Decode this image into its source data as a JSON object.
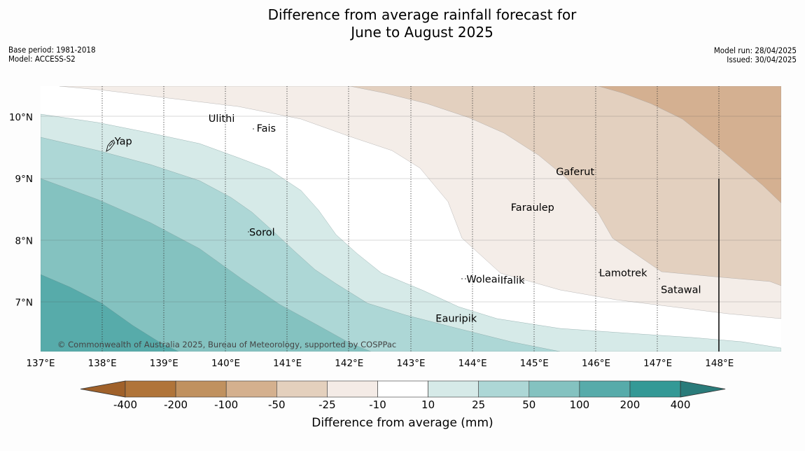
{
  "title": {
    "line1": "Difference from average rainfall forecast for",
    "line2": "June to August 2025"
  },
  "meta_left": {
    "base_period": "Base period: 1981-2018",
    "model": "Model: ACCESS-S2"
  },
  "meta_right": {
    "model_run": "Model run: 28/04/2025",
    "issued": "Issued: 30/04/2025"
  },
  "copyright": "© Commonwealth of Australia 2025, Bureau of Meteorology, supported by COSPPac",
  "axes": {
    "lon_labels": [
      "137°E",
      "138°E",
      "139°E",
      "140°E",
      "141°E",
      "142°E",
      "143°E",
      "144°E",
      "145°E",
      "146°E",
      "147°E",
      "148°E"
    ],
    "lon_values": [
      137,
      138,
      139,
      140,
      141,
      142,
      143,
      144,
      145,
      146,
      147,
      148
    ],
    "lat_labels": [
      "10°N",
      "9°N",
      "8°N",
      "7°N"
    ],
    "lat_values": [
      10,
      9,
      8,
      7
    ],
    "lon_range": [
      137,
      149
    ],
    "lat_range": [
      6.2,
      10.5
    ]
  },
  "places": [
    {
      "name": "Yap",
      "lon": 138.2,
      "lat": 9.55
    },
    {
      "name": "Ulithi",
      "lon": 139.72,
      "lat": 9.92
    },
    {
      "name": "Fais",
      "lon": 140.5,
      "lat": 9.76
    },
    {
      "name": "Gaferut",
      "lon": 145.35,
      "lat": 9.06
    },
    {
      "name": "Faraulep",
      "lon": 144.62,
      "lat": 8.48
    },
    {
      "name": "Sorol",
      "lon": 140.38,
      "lat": 8.08
    },
    {
      "name": "Lamotrek",
      "lon": 146.05,
      "lat": 7.42
    },
    {
      "name": "Woleai",
      "lon": 143.9,
      "lat": 7.32
    },
    {
      "name": "Ifalik",
      "lon": 144.45,
      "lat": 7.3
    },
    {
      "name": "Satawal",
      "lon": 147.05,
      "lat": 7.15
    },
    {
      "name": "Eauripik",
      "lon": 143.4,
      "lat": 6.68
    }
  ],
  "colorbar": {
    "title": "Difference from average (mm)",
    "tick_labels": [
      "-400",
      "-200",
      "-100",
      "-50",
      "-25",
      "-10",
      "10",
      "25",
      "50",
      "100",
      "200",
      "400"
    ],
    "colors": [
      "#a0612a",
      "#b07439",
      "#c0915f",
      "#d4b08e",
      "#e4d0bd",
      "#f4ebe6",
      "#ffffff",
      "#d6eae8",
      "#add7d6",
      "#84c2c0",
      "#57abaa",
      "#349996",
      "#2a7b7a"
    ]
  }
}
